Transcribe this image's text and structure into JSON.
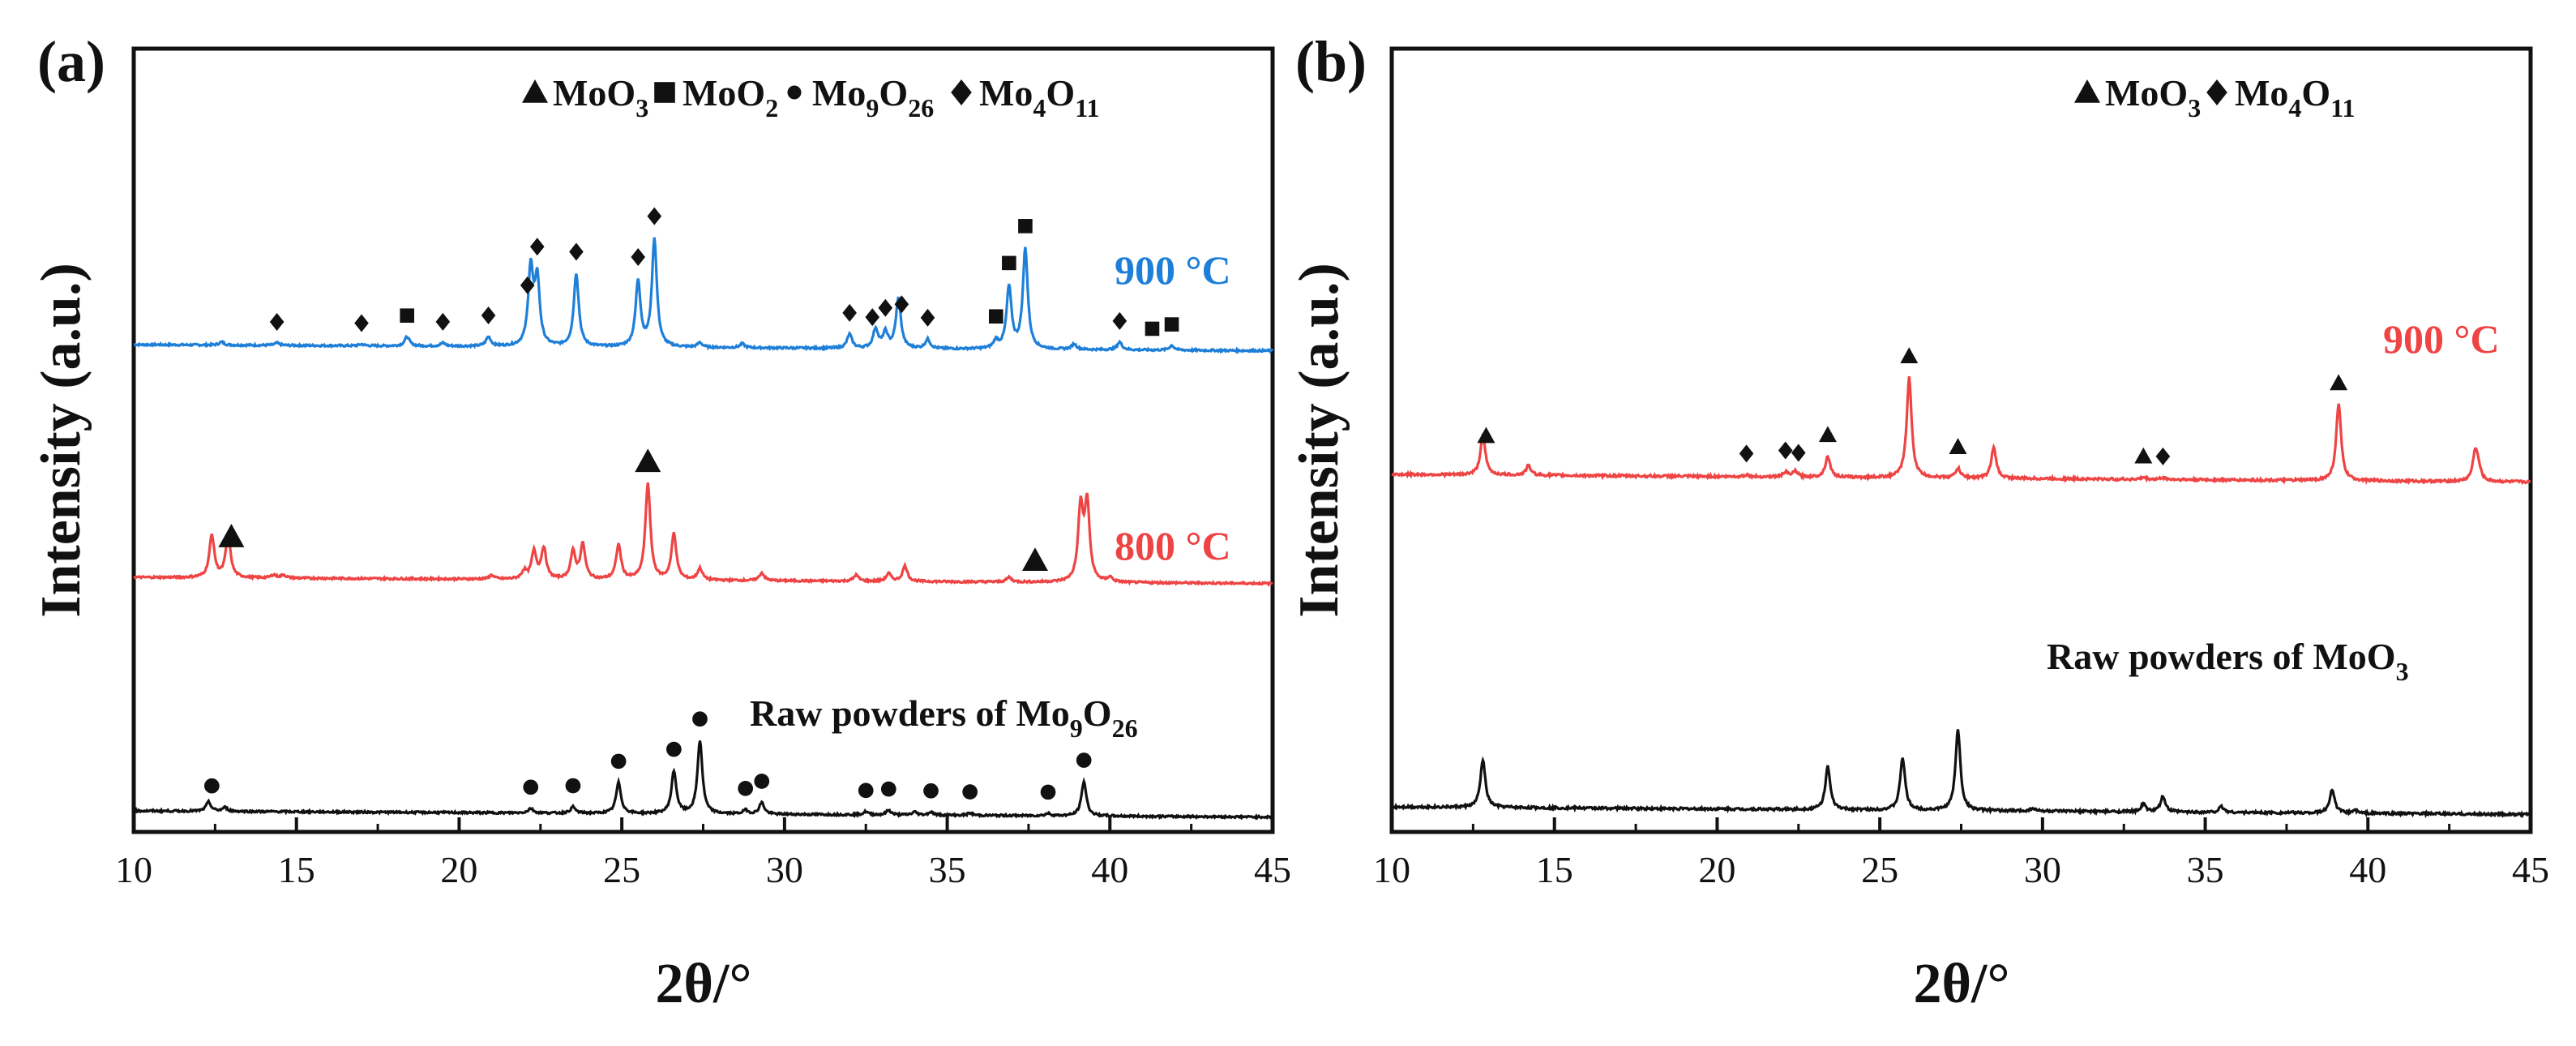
{
  "chart_data": [
    {
      "type": "line",
      "panel": "(a)",
      "xlabel": "2θ/°",
      "ylabel": "Intensity (a.u.)",
      "xlim": [
        10,
        45
      ],
      "x_ticks": [
        10,
        15,
        20,
        25,
        30,
        35,
        40,
        45
      ],
      "y_ticks": [],
      "legend": [
        {
          "symbol": "triangle",
          "base": "MoO",
          "sub": "3"
        },
        {
          "symbol": "square",
          "base": "MoO",
          "sub": "2"
        },
        {
          "symbol": "circle",
          "base": "Mo",
          "sub": "9",
          "mid": "O",
          "sub2": "26"
        },
        {
          "symbol": "diamond",
          "base": "Mo",
          "sub": "4",
          "mid": "O",
          "sub2": "11"
        }
      ],
      "series": [
        {
          "name": "900 °C",
          "label": "900 °C",
          "color": "#1e7fd8",
          "baseline": 0.0,
          "offset": 2.05,
          "peaks": [
            [
              12.7,
              0.04
            ],
            [
              14.4,
              0.03
            ],
            [
              17.0,
              0.02
            ],
            [
              18.4,
              0.12
            ],
            [
              19.5,
              0.04
            ],
            [
              20.9,
              0.12
            ],
            [
              22.2,
              1.0
            ],
            [
              22.4,
              0.85
            ],
            [
              23.6,
              0.95
            ],
            [
              25.5,
              0.85
            ],
            [
              26.0,
              1.4
            ],
            [
              27.4,
              0.06
            ],
            [
              28.7,
              0.05
            ],
            [
              32.0,
              0.18
            ],
            [
              32.8,
              0.25
            ],
            [
              33.1,
              0.2
            ],
            [
              33.5,
              0.65
            ],
            [
              34.4,
              0.12
            ],
            [
              36.5,
              0.1
            ],
            [
              36.9,
              0.8
            ],
            [
              37.4,
              1.3
            ],
            [
              38.9,
              0.07
            ],
            [
              40.3,
              0.1
            ],
            [
              41.9,
              0.06
            ]
          ],
          "markers": [
            {
              "x": 14.4,
              "symbol": "diamond"
            },
            {
              "x": 17.0,
              "symbol": "diamond"
            },
            {
              "x": 18.4,
              "symbol": "square"
            },
            {
              "x": 19.5,
              "symbol": "diamond"
            },
            {
              "x": 20.9,
              "symbol": "diamond"
            },
            {
              "x": 22.1,
              "symbol": "diamond"
            },
            {
              "x": 22.4,
              "symbol": "diamond"
            },
            {
              "x": 23.6,
              "symbol": "diamond"
            },
            {
              "x": 25.5,
              "symbol": "diamond"
            },
            {
              "x": 26.0,
              "symbol": "diamond"
            },
            {
              "x": 32.0,
              "symbol": "diamond"
            },
            {
              "x": 32.7,
              "symbol": "diamond"
            },
            {
              "x": 33.1,
              "symbol": "diamond"
            },
            {
              "x": 33.6,
              "symbol": "diamond"
            },
            {
              "x": 34.4,
              "symbol": "diamond"
            },
            {
              "x": 36.5,
              "symbol": "square"
            },
            {
              "x": 36.9,
              "symbol": "square"
            },
            {
              "x": 37.4,
              "symbol": "square"
            },
            {
              "x": 40.3,
              "symbol": "diamond"
            },
            {
              "x": 41.3,
              "symbol": "square"
            },
            {
              "x": 41.9,
              "symbol": "square"
            }
          ]
        },
        {
          "name": "800 °C",
          "label": "800 °C",
          "color": "#ee4444",
          "offset": 1.05,
          "peaks": [
            [
              12.4,
              0.55
            ],
            [
              12.9,
              0.55
            ],
            [
              14.3,
              0.04
            ],
            [
              14.6,
              0.04
            ],
            [
              21.0,
              0.05
            ],
            [
              22.0,
              0.1
            ],
            [
              22.3,
              0.35
            ],
            [
              22.6,
              0.4
            ],
            [
              23.5,
              0.35
            ],
            [
              23.8,
              0.45
            ],
            [
              24.9,
              0.45
            ],
            [
              25.8,
              1.25
            ],
            [
              26.6,
              0.6
            ],
            [
              27.4,
              0.15
            ],
            [
              29.3,
              0.1
            ],
            [
              32.2,
              0.08
            ],
            [
              33.2,
              0.1
            ],
            [
              33.7,
              0.2
            ],
            [
              36.9,
              0.06
            ],
            [
              39.1,
              0.95
            ],
            [
              39.3,
              1.0
            ],
            [
              40.0,
              0.06
            ]
          ],
          "markers": [
            {
              "x": 13.0,
              "symbol": "triangle"
            },
            {
              "x": 25.8,
              "symbol": "triangle"
            },
            {
              "x": 37.7,
              "symbol": "triangle"
            }
          ]
        },
        {
          "name": "Raw powders of Mo9O26",
          "label": "Raw powders of Mo",
          "label_sub": "9",
          "label_mid": "O",
          "label_sub2": "26",
          "color": "#111111",
          "offset": 0.0,
          "peaks": [
            [
              12.3,
              0.12
            ],
            [
              12.8,
              0.05
            ],
            [
              22.2,
              0.06
            ],
            [
              23.5,
              0.08
            ],
            [
              24.9,
              0.4
            ],
            [
              26.6,
              0.55
            ],
            [
              27.4,
              0.95
            ],
            [
              28.8,
              0.05
            ],
            [
              29.3,
              0.15
            ],
            [
              32.5,
              0.04
            ],
            [
              33.2,
              0.06
            ],
            [
              34.0,
              0.04
            ],
            [
              34.5,
              0.04
            ],
            [
              35.7,
              0.03
            ],
            [
              38.1,
              0.03
            ],
            [
              39.2,
              0.45
            ]
          ],
          "markers": [
            {
              "x": 12.4,
              "symbol": "circle"
            },
            {
              "x": 22.2,
              "symbol": "circle"
            },
            {
              "x": 23.5,
              "symbol": "circle"
            },
            {
              "x": 24.9,
              "symbol": "circle"
            },
            {
              "x": 26.6,
              "symbol": "circle"
            },
            {
              "x": 27.4,
              "symbol": "circle"
            },
            {
              "x": 28.8,
              "symbol": "circle"
            },
            {
              "x": 29.3,
              "symbol": "circle"
            },
            {
              "x": 32.5,
              "symbol": "circle"
            },
            {
              "x": 33.2,
              "symbol": "circle"
            },
            {
              "x": 34.5,
              "symbol": "circle"
            },
            {
              "x": 35.7,
              "symbol": "circle"
            },
            {
              "x": 38.1,
              "symbol": "circle"
            },
            {
              "x": 39.2,
              "symbol": "circle"
            }
          ]
        }
      ]
    },
    {
      "type": "line",
      "panel": "(b)",
      "xlabel": "2θ/°",
      "ylabel": "Intensity (a.u.)",
      "xlim": [
        10,
        45
      ],
      "x_ticks": [
        10,
        15,
        20,
        25,
        30,
        35,
        40,
        45
      ],
      "y_ticks": [],
      "legend": [
        {
          "symbol": "triangle",
          "base": "MoO",
          "sub": "3"
        },
        {
          "symbol": "diamond",
          "base": "Mo",
          "sub": "4",
          "mid": "O",
          "sub2": "11"
        }
      ],
      "series": [
        {
          "name": "900 °C",
          "label": "900 °C",
          "color": "#ee4444",
          "offset": 1.05,
          "peaks": [
            [
              12.8,
              0.42
            ],
            [
              14.2,
              0.1
            ],
            [
              20.9,
              0.02
            ],
            [
              22.1,
              0.05
            ],
            [
              22.4,
              0.06
            ],
            [
              23.4,
              0.22
            ],
            [
              25.9,
              1.05
            ],
            [
              27.4,
              0.1
            ],
            [
              28.5,
              0.32
            ],
            [
              33.1,
              0.02
            ],
            [
              33.7,
              0.02
            ],
            [
              39.1,
              0.8
            ],
            [
              43.3,
              0.31
            ],
            [
              43.4,
              0.1
            ]
          ],
          "markers": [
            {
              "x": 12.9,
              "symbol": "triangle"
            },
            {
              "x": 20.9,
              "symbol": "diamond"
            },
            {
              "x": 22.1,
              "symbol": "diamond"
            },
            {
              "x": 22.5,
              "symbol": "diamond"
            },
            {
              "x": 23.4,
              "symbol": "triangle"
            },
            {
              "x": 25.9,
              "symbol": "triangle"
            },
            {
              "x": 27.4,
              "symbol": "triangle"
            },
            {
              "x": 33.1,
              "symbol": "triangle"
            },
            {
              "x": 33.7,
              "symbol": "diamond"
            },
            {
              "x": 39.1,
              "symbol": "triangle"
            }
          ]
        },
        {
          "name": "Raw powders of MoO3",
          "label": "Raw powders of MoO",
          "label_sub": "3",
          "color": "#111111",
          "offset": 0.0,
          "peaks": [
            [
              12.8,
              0.5
            ],
            [
              23.4,
              0.45
            ],
            [
              25.7,
              0.55
            ],
            [
              27.4,
              0.85
            ],
            [
              29.7,
              0.03
            ],
            [
              33.1,
              0.08
            ],
            [
              33.7,
              0.16
            ],
            [
              35.5,
              0.06
            ],
            [
              38.9,
              0.25
            ],
            [
              39.6,
              0.03
            ]
          ],
          "markers": []
        }
      ]
    }
  ]
}
